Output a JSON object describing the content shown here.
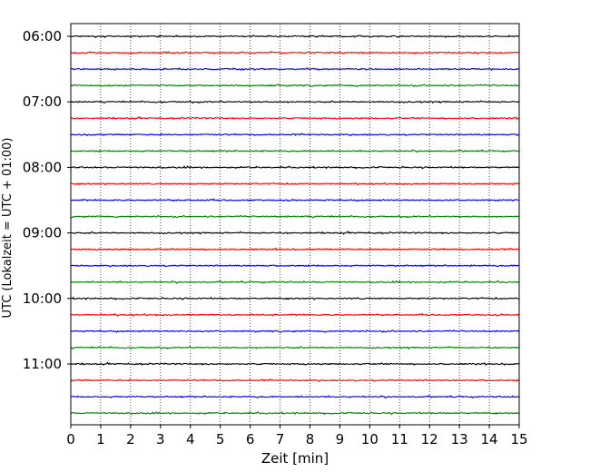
{
  "chart_data": {
    "type": "line",
    "subtype": "helicorder-seismogram",
    "xlabel": "Zeit  [min]",
    "ylabel": "UTC (Lokalzeit = UTC + 01:00)",
    "xlim": [
      0,
      15
    ],
    "x_ticks": [
      "0",
      "1",
      "2",
      "3",
      "4",
      "5",
      "6",
      "7",
      "8",
      "9",
      "10",
      "11",
      "12",
      "13",
      "14",
      "15"
    ],
    "y_tick_labels": [
      "06:00",
      "07:00",
      "08:00",
      "09:00",
      "10:00",
      "11:00"
    ],
    "rows_per_hour": 4,
    "minutes_per_row": 15,
    "row_count": 24,
    "row_start_times": [
      "06:00",
      "06:15",
      "06:30",
      "06:45",
      "07:00",
      "07:15",
      "07:30",
      "07:45",
      "08:00",
      "08:15",
      "08:30",
      "08:45",
      "09:00",
      "09:15",
      "09:30",
      "09:45",
      "10:00",
      "10:15",
      "10:30",
      "10:45",
      "11:00",
      "11:15",
      "11:30",
      "11:45"
    ],
    "trace_colors": [
      "#000000",
      "#ff0000",
      "#0000ff",
      "#008000"
    ],
    "grid": {
      "x": true,
      "y": false,
      "style": "dotted"
    }
  }
}
